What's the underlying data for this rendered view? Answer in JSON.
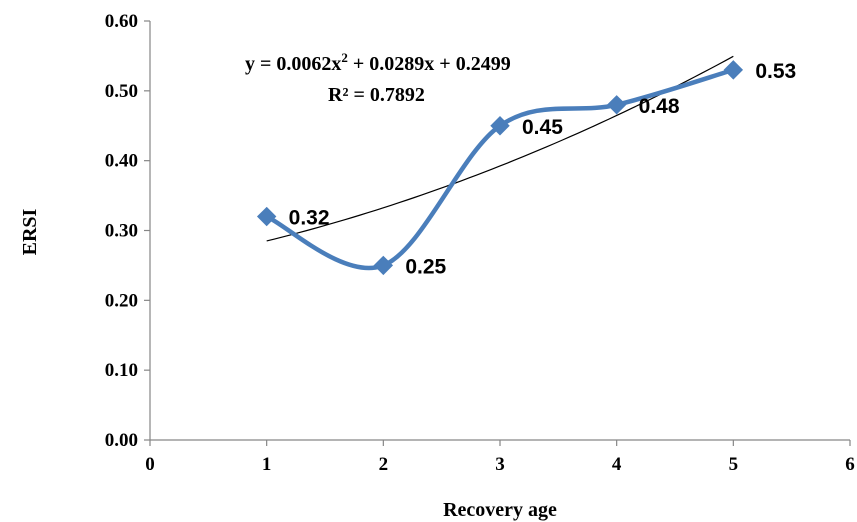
{
  "chart_data": {
    "type": "line",
    "title": "",
    "xlabel": "Recovery age",
    "ylabel": "ERSI",
    "xlim": [
      0,
      6
    ],
    "ylim": [
      0.0,
      0.6
    ],
    "x_ticks": [
      "0",
      "1",
      "2",
      "3",
      "4",
      "5",
      "6"
    ],
    "y_ticks": [
      "0.00",
      "0.10",
      "0.20",
      "0.30",
      "0.40",
      "0.50",
      "0.60"
    ],
    "grid": false,
    "legend": "none",
    "series": [
      {
        "x": [
          1,
          2,
          3,
          4,
          5
        ],
        "y": [
          0.32,
          0.25,
          0.45,
          0.48,
          0.53
        ],
        "data_labels": [
          "0.32",
          "0.25",
          "0.45",
          "0.48",
          "0.53"
        ],
        "color": "#4a7ebb",
        "marker": "diamond",
        "smooth": true
      }
    ],
    "trendline": {
      "type": "polynomial",
      "order": 2,
      "coefficients": [
        0.0062,
        0.0289,
        0.2499
      ],
      "x_range": [
        1,
        5
      ],
      "color": "#000000",
      "equation_line1_parts": [
        "y = 0.0062x",
        "2",
        " + 0.0289x + 0.2499"
      ],
      "equation_line2": "R² = 0.7892"
    }
  }
}
